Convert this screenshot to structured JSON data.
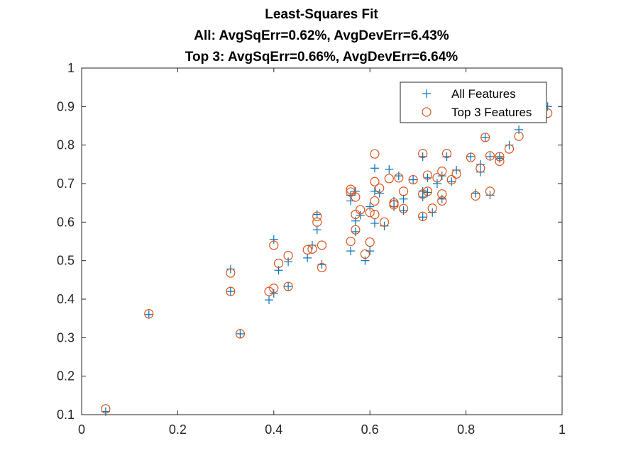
{
  "chart_data": {
    "type": "scatter",
    "title": [
      "Least-Squares Fit",
      "All: AvgSqErr=0.62%, AvgDevErr=6.43%",
      "Top 3: AvgSqErr=0.66%, AvgDevErr=6.64%"
    ],
    "xlabel": "",
    "ylabel": "",
    "xlim": [
      0,
      1
    ],
    "ylim": [
      0.1,
      1
    ],
    "x_ticks": [
      "0",
      "0.2",
      "0.4",
      "0.6",
      "0.8",
      "1"
    ],
    "y_ticks": [
      "0.1",
      "0.2",
      "0.3",
      "0.4",
      "0.5",
      "0.6",
      "0.7",
      "0.8",
      "0.9",
      "1"
    ],
    "grid": false,
    "legend_position": "top-right",
    "series": [
      {
        "name": "All Features",
        "marker": "plus",
        "color": "#0072BD",
        "points": [
          [
            0.05,
            0.108
          ],
          [
            0.14,
            0.36
          ],
          [
            0.31,
            0.478
          ],
          [
            0.31,
            0.42
          ],
          [
            0.33,
            0.31
          ],
          [
            0.39,
            0.398
          ],
          [
            0.4,
            0.555
          ],
          [
            0.4,
            0.415
          ],
          [
            0.41,
            0.475
          ],
          [
            0.43,
            0.497
          ],
          [
            0.43,
            0.433
          ],
          [
            0.47,
            0.507
          ],
          [
            0.48,
            0.54
          ],
          [
            0.49,
            0.62
          ],
          [
            0.49,
            0.58
          ],
          [
            0.5,
            0.49
          ],
          [
            0.56,
            0.67
          ],
          [
            0.56,
            0.655
          ],
          [
            0.56,
            0.525
          ],
          [
            0.57,
            0.68
          ],
          [
            0.57,
            0.603
          ],
          [
            0.57,
            0.575
          ],
          [
            0.58,
            0.618
          ],
          [
            0.59,
            0.5
          ],
          [
            0.6,
            0.64
          ],
          [
            0.6,
            0.525
          ],
          [
            0.61,
            0.74
          ],
          [
            0.61,
            0.68
          ],
          [
            0.61,
            0.597
          ],
          [
            0.62,
            0.675
          ],
          [
            0.63,
            0.59
          ],
          [
            0.64,
            0.737
          ],
          [
            0.65,
            0.655
          ],
          [
            0.65,
            0.64
          ],
          [
            0.66,
            0.72
          ],
          [
            0.67,
            0.66
          ],
          [
            0.67,
            0.63
          ],
          [
            0.69,
            0.71
          ],
          [
            0.71,
            0.77
          ],
          [
            0.71,
            0.68
          ],
          [
            0.71,
            0.665
          ],
          [
            0.71,
            0.613
          ],
          [
            0.72,
            0.715
          ],
          [
            0.72,
            0.677
          ],
          [
            0.73,
            0.625
          ],
          [
            0.74,
            0.7
          ],
          [
            0.75,
            0.72
          ],
          [
            0.75,
            0.66
          ],
          [
            0.76,
            0.77
          ],
          [
            0.77,
            0.705
          ],
          [
            0.78,
            0.735
          ],
          [
            0.81,
            0.77
          ],
          [
            0.82,
            0.675
          ],
          [
            0.83,
            0.75
          ],
          [
            0.83,
            0.73
          ],
          [
            0.84,
            0.82
          ],
          [
            0.85,
            0.77
          ],
          [
            0.85,
            0.67
          ],
          [
            0.87,
            0.77
          ],
          [
            0.87,
            0.765
          ],
          [
            0.89,
            0.8
          ],
          [
            0.91,
            0.84
          ],
          [
            0.97,
            0.9
          ]
        ]
      },
      {
        "name": "Top 3 Features",
        "marker": "circle",
        "color": "#D95319",
        "points": [
          [
            0.05,
            0.115
          ],
          [
            0.14,
            0.362
          ],
          [
            0.31,
            0.468
          ],
          [
            0.31,
            0.42
          ],
          [
            0.33,
            0.31
          ],
          [
            0.39,
            0.42
          ],
          [
            0.4,
            0.54
          ],
          [
            0.4,
            0.428
          ],
          [
            0.41,
            0.493
          ],
          [
            0.43,
            0.513
          ],
          [
            0.43,
            0.433
          ],
          [
            0.47,
            0.528
          ],
          [
            0.48,
            0.53
          ],
          [
            0.49,
            0.615
          ],
          [
            0.49,
            0.6
          ],
          [
            0.5,
            0.54
          ],
          [
            0.5,
            0.482
          ],
          [
            0.56,
            0.685
          ],
          [
            0.56,
            0.678
          ],
          [
            0.56,
            0.55
          ],
          [
            0.57,
            0.665
          ],
          [
            0.57,
            0.62
          ],
          [
            0.57,
            0.58
          ],
          [
            0.58,
            0.632
          ],
          [
            0.59,
            0.517
          ],
          [
            0.6,
            0.625
          ],
          [
            0.6,
            0.548
          ],
          [
            0.61,
            0.777
          ],
          [
            0.61,
            0.705
          ],
          [
            0.61,
            0.62
          ],
          [
            0.61,
            0.655
          ],
          [
            0.62,
            0.688
          ],
          [
            0.63,
            0.6
          ],
          [
            0.64,
            0.713
          ],
          [
            0.65,
            0.65
          ],
          [
            0.65,
            0.645
          ],
          [
            0.66,
            0.715
          ],
          [
            0.67,
            0.68
          ],
          [
            0.67,
            0.635
          ],
          [
            0.69,
            0.71
          ],
          [
            0.71,
            0.778
          ],
          [
            0.71,
            0.673
          ],
          [
            0.71,
            0.615
          ],
          [
            0.72,
            0.722
          ],
          [
            0.72,
            0.68
          ],
          [
            0.73,
            0.636
          ],
          [
            0.74,
            0.715
          ],
          [
            0.75,
            0.732
          ],
          [
            0.75,
            0.673
          ],
          [
            0.75,
            0.655
          ],
          [
            0.76,
            0.778
          ],
          [
            0.77,
            0.71
          ],
          [
            0.78,
            0.725
          ],
          [
            0.81,
            0.768
          ],
          [
            0.82,
            0.668
          ],
          [
            0.83,
            0.74
          ],
          [
            0.84,
            0.82
          ],
          [
            0.85,
            0.772
          ],
          [
            0.85,
            0.68
          ],
          [
            0.87,
            0.758
          ],
          [
            0.87,
            0.77
          ],
          [
            0.89,
            0.79
          ],
          [
            0.91,
            0.823
          ],
          [
            0.97,
            0.883
          ]
        ]
      }
    ]
  }
}
